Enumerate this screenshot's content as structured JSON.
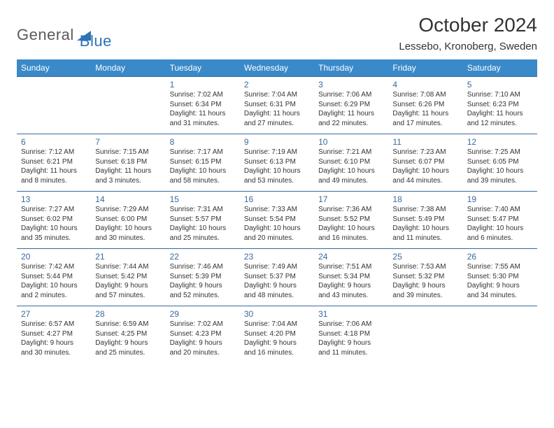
{
  "logo": {
    "text1": "General",
    "text2": "Blue",
    "tri_color": "#2d73b7",
    "text1_color": "#5a5a5a"
  },
  "title": "October 2024",
  "location": "Lessebo, Kronoberg, Sweden",
  "header_bg": "#3a89c9",
  "header_fg": "#ffffff",
  "cell_border": "#3a6a9a",
  "daynum_color": "#3a6a9a",
  "text_color": "#333333",
  "days": [
    "Sunday",
    "Monday",
    "Tuesday",
    "Wednesday",
    "Thursday",
    "Friday",
    "Saturday"
  ],
  "weeks": [
    [
      null,
      null,
      {
        "n": "1",
        "sr": "7:02 AM",
        "ss": "6:34 PM",
        "dl": "11 hours and 31 minutes."
      },
      {
        "n": "2",
        "sr": "7:04 AM",
        "ss": "6:31 PM",
        "dl": "11 hours and 27 minutes."
      },
      {
        "n": "3",
        "sr": "7:06 AM",
        "ss": "6:29 PM",
        "dl": "11 hours and 22 minutes."
      },
      {
        "n": "4",
        "sr": "7:08 AM",
        "ss": "6:26 PM",
        "dl": "11 hours and 17 minutes."
      },
      {
        "n": "5",
        "sr": "7:10 AM",
        "ss": "6:23 PM",
        "dl": "11 hours and 12 minutes."
      }
    ],
    [
      {
        "n": "6",
        "sr": "7:12 AM",
        "ss": "6:21 PM",
        "dl": "11 hours and 8 minutes."
      },
      {
        "n": "7",
        "sr": "7:15 AM",
        "ss": "6:18 PM",
        "dl": "11 hours and 3 minutes."
      },
      {
        "n": "8",
        "sr": "7:17 AM",
        "ss": "6:15 PM",
        "dl": "10 hours and 58 minutes."
      },
      {
        "n": "9",
        "sr": "7:19 AM",
        "ss": "6:13 PM",
        "dl": "10 hours and 53 minutes."
      },
      {
        "n": "10",
        "sr": "7:21 AM",
        "ss": "6:10 PM",
        "dl": "10 hours and 49 minutes."
      },
      {
        "n": "11",
        "sr": "7:23 AM",
        "ss": "6:07 PM",
        "dl": "10 hours and 44 minutes."
      },
      {
        "n": "12",
        "sr": "7:25 AM",
        "ss": "6:05 PM",
        "dl": "10 hours and 39 minutes."
      }
    ],
    [
      {
        "n": "13",
        "sr": "7:27 AM",
        "ss": "6:02 PM",
        "dl": "10 hours and 35 minutes."
      },
      {
        "n": "14",
        "sr": "7:29 AM",
        "ss": "6:00 PM",
        "dl": "10 hours and 30 minutes."
      },
      {
        "n": "15",
        "sr": "7:31 AM",
        "ss": "5:57 PM",
        "dl": "10 hours and 25 minutes."
      },
      {
        "n": "16",
        "sr": "7:33 AM",
        "ss": "5:54 PM",
        "dl": "10 hours and 20 minutes."
      },
      {
        "n": "17",
        "sr": "7:36 AM",
        "ss": "5:52 PM",
        "dl": "10 hours and 16 minutes."
      },
      {
        "n": "18",
        "sr": "7:38 AM",
        "ss": "5:49 PM",
        "dl": "10 hours and 11 minutes."
      },
      {
        "n": "19",
        "sr": "7:40 AM",
        "ss": "5:47 PM",
        "dl": "10 hours and 6 minutes."
      }
    ],
    [
      {
        "n": "20",
        "sr": "7:42 AM",
        "ss": "5:44 PM",
        "dl": "10 hours and 2 minutes."
      },
      {
        "n": "21",
        "sr": "7:44 AM",
        "ss": "5:42 PM",
        "dl": "9 hours and 57 minutes."
      },
      {
        "n": "22",
        "sr": "7:46 AM",
        "ss": "5:39 PM",
        "dl": "9 hours and 52 minutes."
      },
      {
        "n": "23",
        "sr": "7:49 AM",
        "ss": "5:37 PM",
        "dl": "9 hours and 48 minutes."
      },
      {
        "n": "24",
        "sr": "7:51 AM",
        "ss": "5:34 PM",
        "dl": "9 hours and 43 minutes."
      },
      {
        "n": "25",
        "sr": "7:53 AM",
        "ss": "5:32 PM",
        "dl": "9 hours and 39 minutes."
      },
      {
        "n": "26",
        "sr": "7:55 AM",
        "ss": "5:30 PM",
        "dl": "9 hours and 34 minutes."
      }
    ],
    [
      {
        "n": "27",
        "sr": "6:57 AM",
        "ss": "4:27 PM",
        "dl": "9 hours and 30 minutes."
      },
      {
        "n": "28",
        "sr": "6:59 AM",
        "ss": "4:25 PM",
        "dl": "9 hours and 25 minutes."
      },
      {
        "n": "29",
        "sr": "7:02 AM",
        "ss": "4:23 PM",
        "dl": "9 hours and 20 minutes."
      },
      {
        "n": "30",
        "sr": "7:04 AM",
        "ss": "4:20 PM",
        "dl": "9 hours and 16 minutes."
      },
      {
        "n": "31",
        "sr": "7:06 AM",
        "ss": "4:18 PM",
        "dl": "9 hours and 11 minutes."
      },
      null,
      null
    ]
  ],
  "labels": {
    "sunrise": "Sunrise:",
    "sunset": "Sunset:",
    "daylight": "Daylight:"
  }
}
